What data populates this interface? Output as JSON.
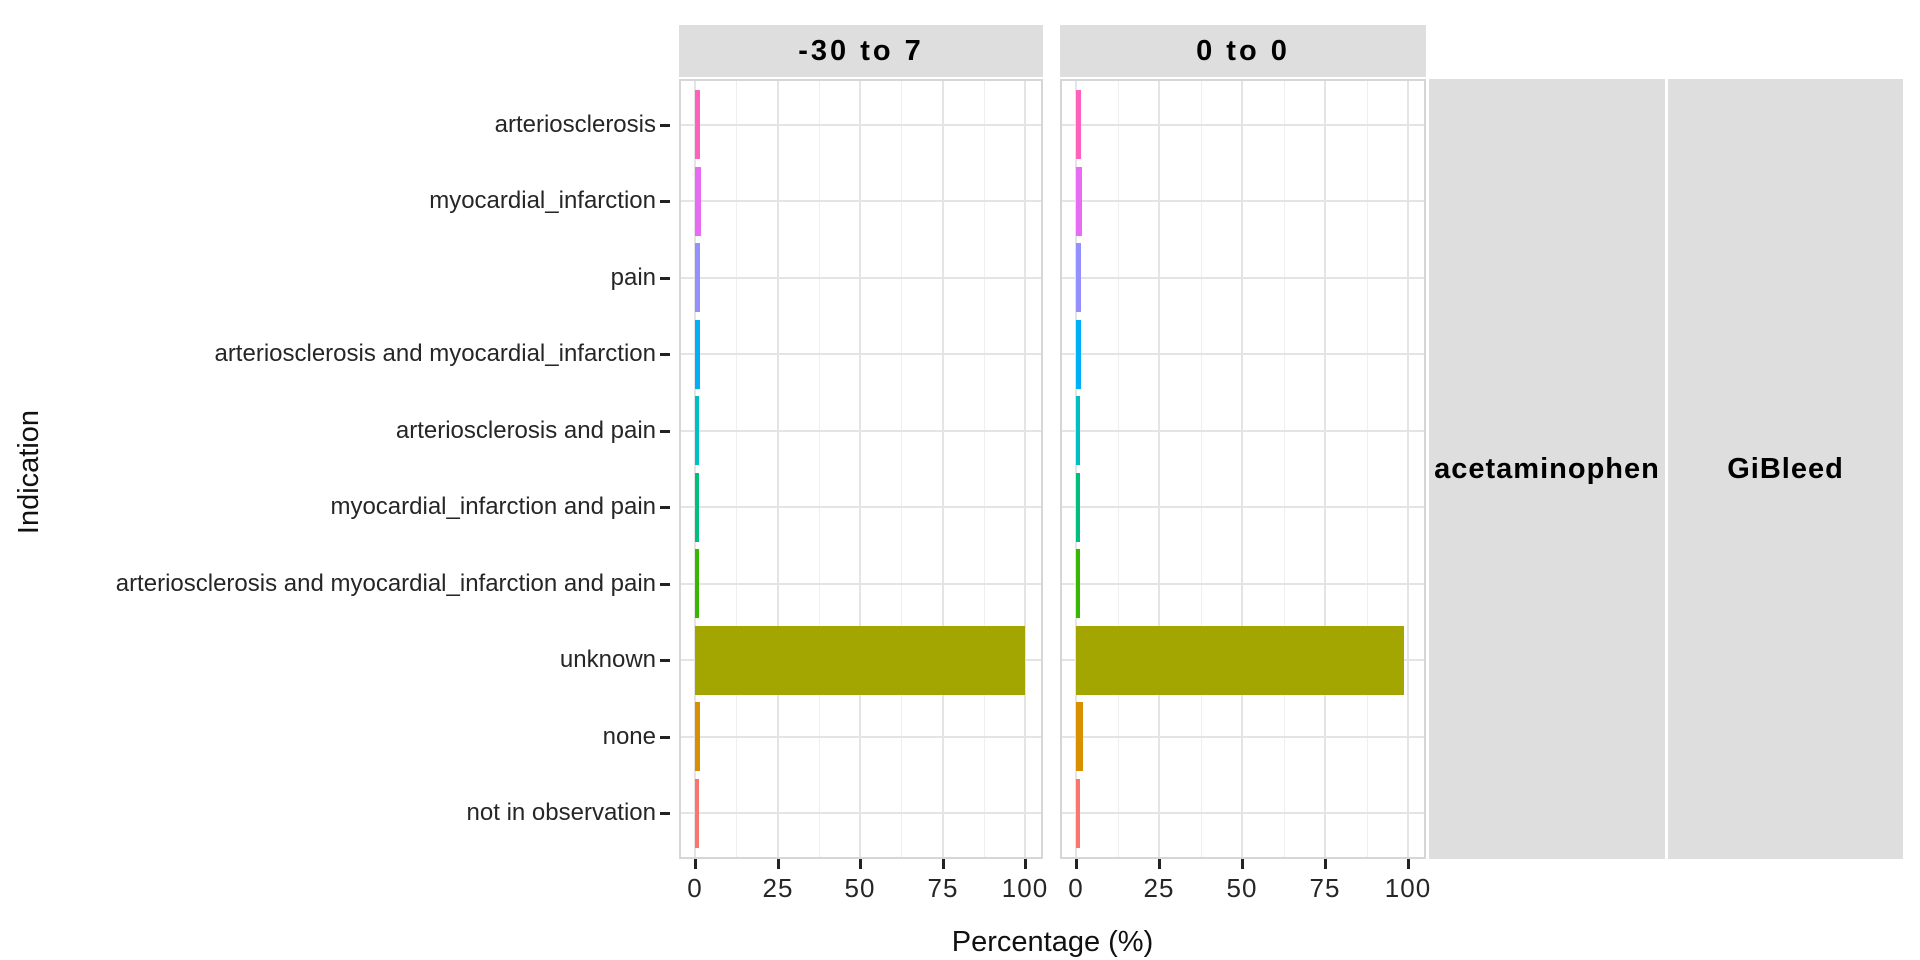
{
  "figure": {
    "x_axis_title": "Percentage (%)",
    "y_axis_title": "Indication"
  },
  "chart_data": {
    "type": "bar",
    "orientation": "horizontal",
    "title": "",
    "xlabel": "Percentage (%)",
    "ylabel": "Indication",
    "x_ticks": [
      0,
      25,
      50,
      75,
      100
    ],
    "xlim": [
      0,
      105
    ],
    "grid": true,
    "legend": false,
    "categories": [
      "arteriosclerosis",
      "myocardial_infarction",
      "pain",
      "arteriosclerosis and myocardial_infarction",
      "arteriosclerosis and pain",
      "myocardial_infarction and pain",
      "arteriosclerosis and myocardial_infarction and pain",
      "unknown",
      "none",
      "not in observation"
    ],
    "bar_colors": [
      "#FF62BC",
      "#E76BF3",
      "#9590FF",
      "#00B0F6",
      "#00BFC4",
      "#00BF7D",
      "#39B600",
      "#A3A500",
      "#D89000",
      "#F8766D"
    ],
    "facet_columns": [
      {
        "label": "-30 to 7",
        "values": [
          1.4,
          1.8,
          1.4,
          1.4,
          1.3,
          1.1,
          0.9,
          100,
          1.5,
          1.2
        ]
      },
      {
        "label": "0 to 0",
        "values": [
          1.4,
          1.9,
          1.4,
          1.4,
          1.3,
          1.1,
          0.9,
          98.7,
          2.2,
          1.2
        ]
      }
    ],
    "right_strips": [
      "acetaminophen",
      "GiBleed"
    ]
  },
  "theme": {
    "strip_bg": "#DEDEDE",
    "panel_bg": "#FFFFFF",
    "panel_border": "#D6D6D6",
    "grid_major": "#E4E4E4",
    "grid_minor": "#EFEFEF",
    "axis_tick_color": "#222222",
    "text_color": "#262626"
  }
}
